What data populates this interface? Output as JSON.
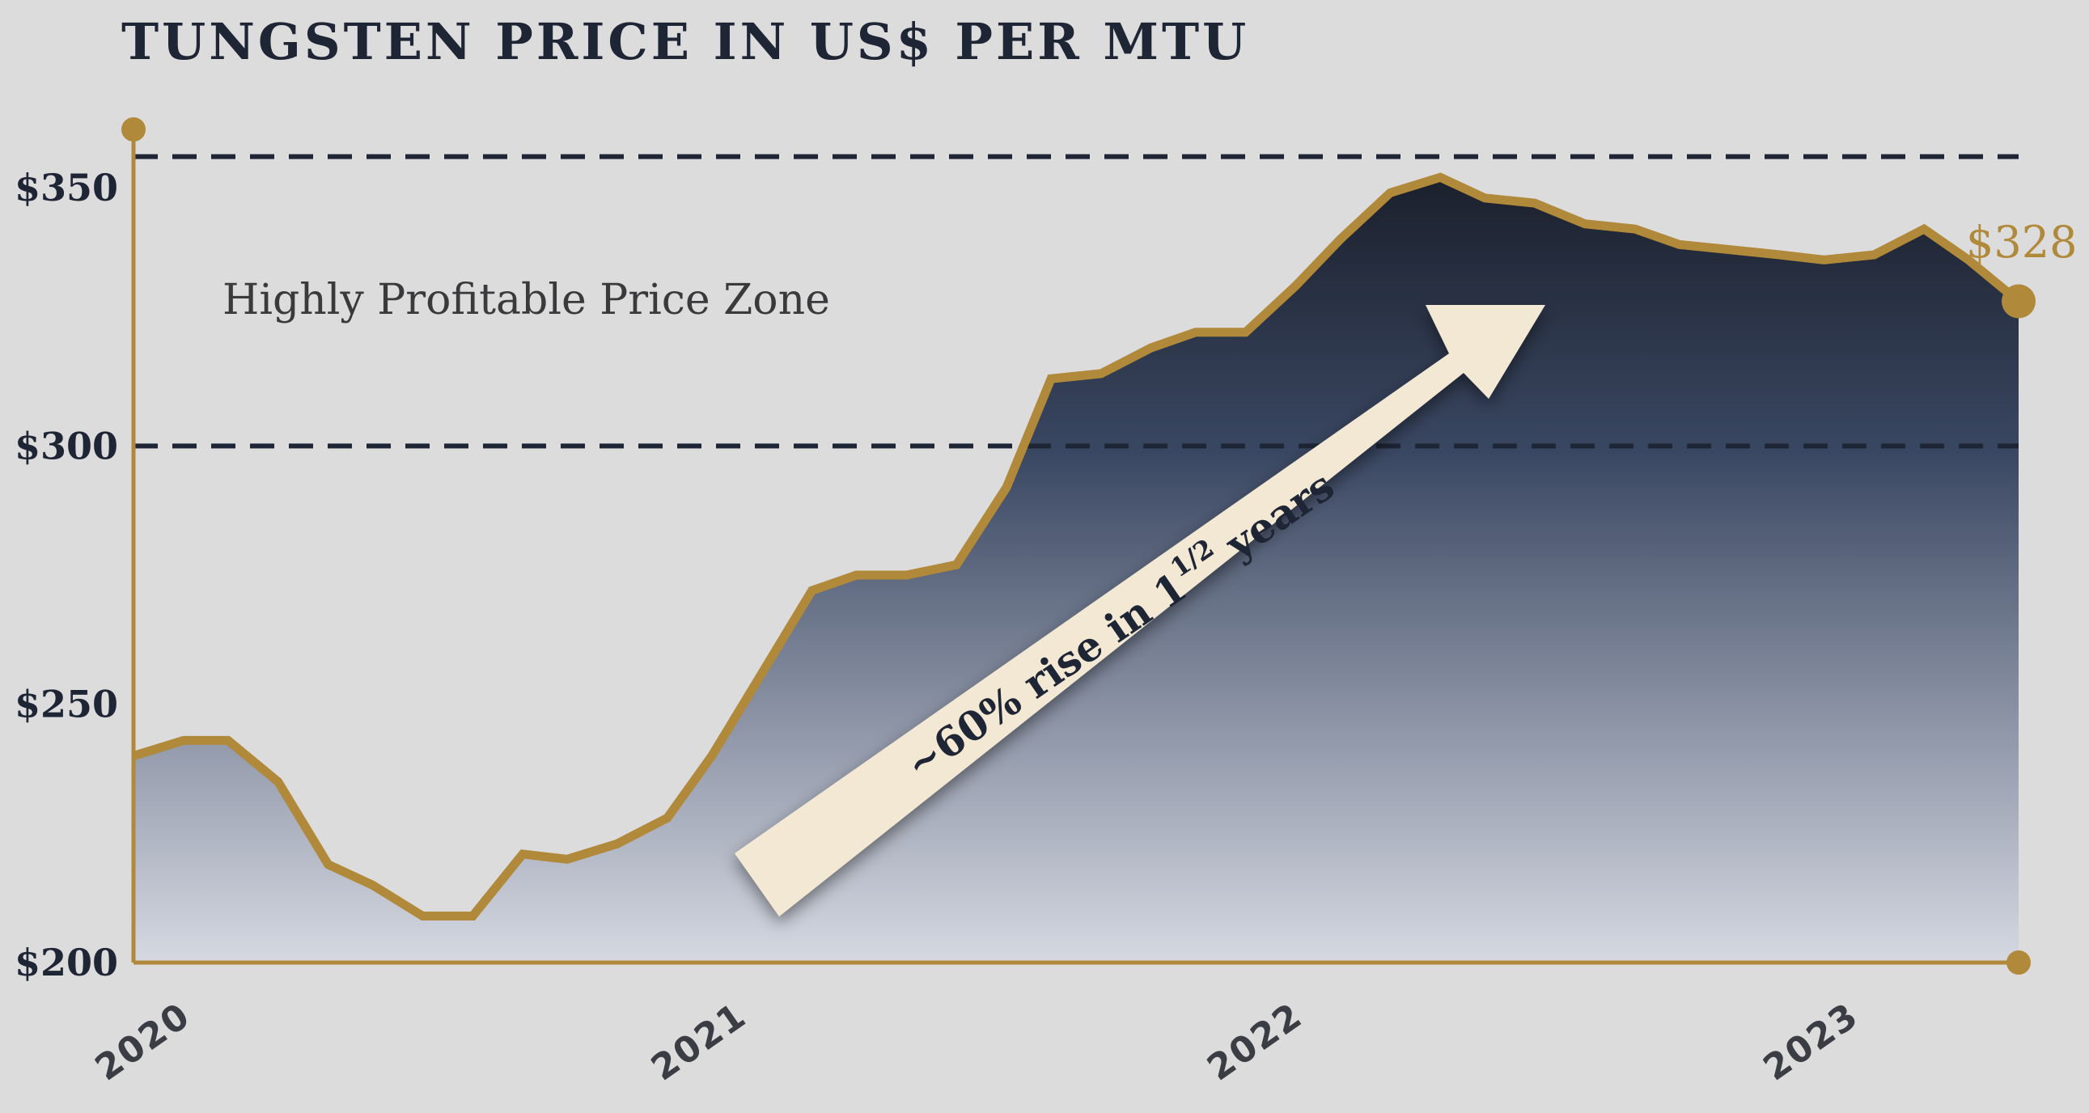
{
  "title": "TUNGSTEN PRICE IN US$ PER MTU",
  "zone_label": "Highly Profitable Price Zone",
  "arrow_label_main": "~60% rise in 1",
  "arrow_label_frac": "1/2",
  "arrow_label_tail": " years",
  "end_label": "$328",
  "colors": {
    "line": "#b0893a",
    "fill_top": "#1b202c",
    "fill_mid": "#3a4762",
    "fill_bottom": "#d6d9e2",
    "dash": "#1e2535",
    "arrow": "#f3e8d3",
    "background": "#dddcdc"
  },
  "chart_data": {
    "type": "area",
    "title": "TUNGSTEN PRICE IN US$ PER MTU",
    "xlabel": "",
    "ylabel": "",
    "x_ticks": [
      "2020",
      "2021",
      "2022",
      "2023"
    ],
    "y_ticks": [
      "$200",
      "$250",
      "$300",
      "$350"
    ],
    "y_tick_values": [
      200,
      250,
      300,
      350
    ],
    "ylim": [
      200,
      360
    ],
    "xlim": [
      2020.0,
      2023.4
    ],
    "reference_lines": [
      300,
      356
    ],
    "grid": false,
    "series": [
      {
        "x": [
          2020.0,
          2020.09,
          2020.17,
          2020.26,
          2020.35,
          2020.43,
          2020.52,
          2020.61,
          2020.7,
          2020.78,
          2020.87,
          2020.96,
          2021.04,
          2021.13,
          2021.22,
          2021.3,
          2021.39,
          2021.48,
          2021.57,
          2021.65,
          2021.74,
          2021.83,
          2021.91,
          2022.0,
          2022.09,
          2022.17,
          2022.26,
          2022.35,
          2022.43,
          2022.52,
          2022.61,
          2022.7,
          2022.78,
          2022.87,
          2022.96,
          2023.04,
          2023.13,
          2023.22,
          2023.3,
          2023.39
        ],
        "values": [
          240,
          243,
          243,
          235,
          219,
          215,
          209,
          209,
          221,
          220,
          223,
          228,
          240,
          256,
          272,
          275,
          275,
          277,
          292,
          313,
          314,
          319,
          322,
          322,
          331,
          340,
          349,
          352,
          348,
          347,
          343,
          342,
          339,
          338,
          337,
          336,
          337,
          342,
          336,
          328
        ]
      }
    ],
    "end_value": 328,
    "annotations": [
      "Highly Profitable Price Zone",
      "~60% rise in 1 1/2 years",
      "$328"
    ]
  }
}
